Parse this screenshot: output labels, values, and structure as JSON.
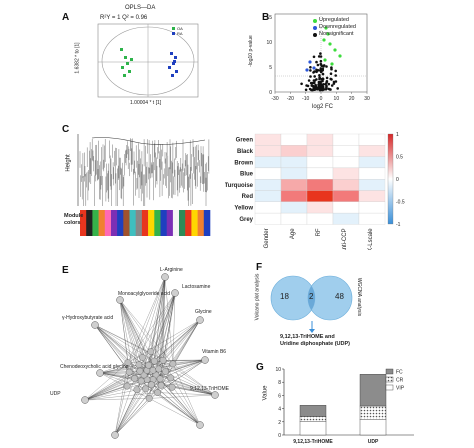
{
  "panel_a": {
    "letter": "A",
    "title": "OPLS—DA",
    "stats": "R²Y = 1  Q² = 0.96",
    "xlabel": "1.00004 * t [1]",
    "ylabel": "1.6382 * to [1]",
    "legend": [
      "OA",
      "RA"
    ],
    "colors": {
      "oa": "#2db34a",
      "ra": "#1f3fbf"
    }
  },
  "panel_b": {
    "letter": "B",
    "xlabel": "log2 FC",
    "ylabel": "-log10 p-value",
    "xticks": [
      "-30",
      "-20",
      "-10",
      "0",
      "10",
      "20",
      "30"
    ],
    "yticks": [
      "0",
      "5",
      "10",
      "15"
    ],
    "legend": [
      "Upregulated",
      "Downregulated",
      "Nonsignificant"
    ],
    "colors": {
      "up": "#3ddc3d",
      "down": "#2b56d8",
      "ns": "#111111"
    }
  },
  "panel_c": {
    "letter": "C",
    "ylabel": "Height",
    "module_label": "Module colors",
    "module_colors": [
      "#e8351e",
      "#222222",
      "#36b24a",
      "#f08030",
      "#ff69b4",
      "#7b2fb5",
      "#1f3fbf",
      "#a0522d",
      "#3fbfbf",
      "#888888",
      "#e8351e",
      "#ffd700",
      "#36b24a",
      "#1f3fbf",
      "#7b2fb5",
      "#f5f5f5",
      "#2e8b57",
      "#e8351e",
      "#ffd700",
      "#f08030",
      "#1f3fbf"
    ]
  },
  "panel_d": {
    "rows": [
      "Green",
      "Black",
      "Brown",
      "Blue",
      "Turquoise",
      "Red",
      "Yellow",
      "Grey"
    ],
    "cols": [
      "Gender",
      "Age",
      "RF",
      "Anti-CCP",
      "K-Lscale"
    ],
    "scale_ticks": [
      "1",
      "0.5",
      "0",
      "-0.5",
      "-1"
    ]
  },
  "panel_e": {
    "letter": "E",
    "node_labels": [
      "L-Arginine",
      "Monoacylglyceride acid",
      "Lactosamine",
      "γ-Hydroxybutyrate acid",
      "Glycine",
      "Chenodeoxycholic acid glycine",
      "Vitamin B6",
      "UDP",
      "9,12,13-TriHOME"
    ]
  },
  "panel_f": {
    "letter": "F",
    "left_label": "Volcano plot analysis",
    "right_label": "WGCNA analysis",
    "left_count": "18",
    "overlap_count": "2",
    "right_count": "48",
    "result": "9,12,13-TriHOME and Uridine diphosphate (UDP)"
  },
  "chart_data": {
    "type": "bar",
    "categories": [
      "9,12,13-TriHOME",
      "UDP"
    ],
    "series": [
      {
        "name": "VIP",
        "values": [
          2.0,
          2.4
        ]
      },
      {
        "name": "CR",
        "values": [
          0.8,
          2.0
        ]
      },
      {
        "name": "FC",
        "values": [
          1.7,
          4.8
        ]
      }
    ],
    "ylabel": "Value",
    "ylim": [
      0,
      10
    ],
    "yticks": [
      0,
      2,
      4,
      6,
      8,
      10
    ],
    "legend": "top-right",
    "letter": "G"
  }
}
